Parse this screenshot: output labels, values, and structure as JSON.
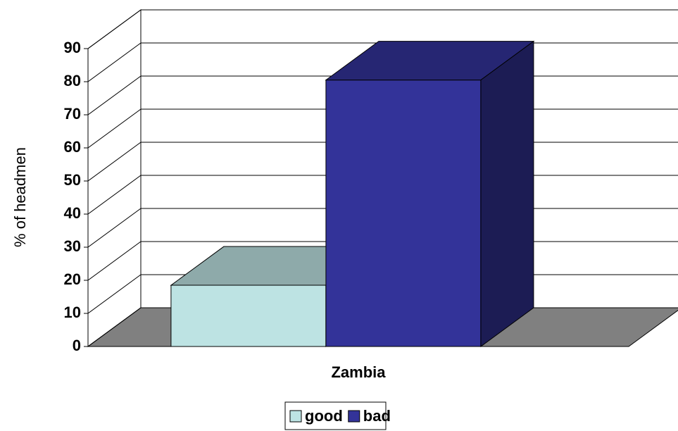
{
  "chart_data": {
    "type": "bar3d",
    "y_label": "% of headmen",
    "categories": [
      "Zambia"
    ],
    "series": [
      {
        "name": "good",
        "color": "#bde3e3",
        "values": [
          18.5
        ]
      },
      {
        "name": "bad",
        "color": "#333399",
        "values": [
          80.5
        ]
      }
    ],
    "ylim": [
      0,
      90
    ],
    "yticks": [
      0,
      10,
      20,
      30,
      40,
      50,
      60,
      70,
      80,
      90
    ],
    "grid": true
  }
}
